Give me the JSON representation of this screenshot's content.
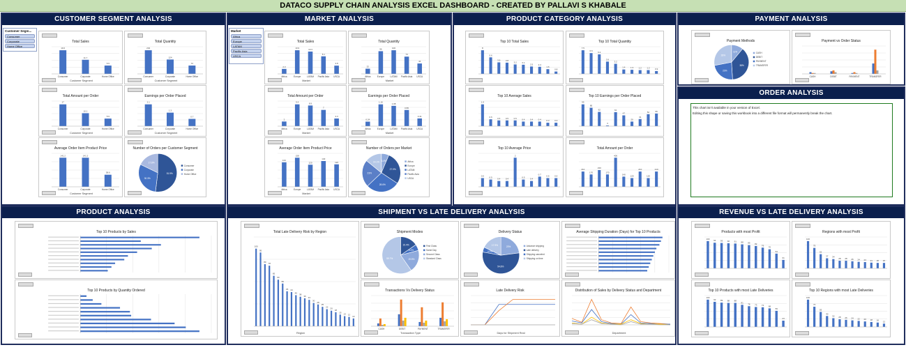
{
  "title": "DATACO SUPPLY CHAIN ANALYSIS EXCEL DASHBOARD - CREATED BY PALLAVI S KHABALE",
  "colors": {
    "bar": "#4472c4",
    "orange": "#ed7d31",
    "header": "#0b1f4d",
    "titlebar": "#c6e0b4"
  },
  "panels": {
    "customer": "CUSTOMER SEGMENT ANALYSIS",
    "market": "MARKET ANALYSIS",
    "product_category": "PRODUCT CATEGORY ANALYSIS",
    "payment": "PAYMENT ANALYSIS",
    "order": "ORDER ANALYSIS",
    "product": "PRODUCT ANALYSIS",
    "shipment": "SHIPMENT VS LATE DELIVERY ANALYSIS",
    "revenue": "REVENUE VS LATE DELIVERY ANALYSIS"
  },
  "slicers": {
    "customer": {
      "header": "Customer Segm...",
      "items": [
        "Consumer",
        "Corporate",
        "Home Office"
      ]
    },
    "market": {
      "header": "Market",
      "items": [
        "Africa",
        "Europe",
        "LATAM",
        "Pacific Asia",
        "USCA"
      ]
    }
  },
  "order_note": {
    "line1": "This chart isn't available in your version of Excel.",
    "line2": "Editing this shape or saving this workbook into a different file format will permanently break the chart."
  },
  "chart_titles": {
    "c_sales": "Total Sales",
    "c_qty": "Total Quantity",
    "c_amount": "Total Amount per Order",
    "c_earn": "Earnings per Order Placed",
    "c_avg": "Average Order Item Product Price",
    "c_pie": "Number of Orders per Customer Segment",
    "m_sales": "Total Sales",
    "m_qty": "Total Quantity",
    "m_amount": "Total Amount per Order",
    "m_earn": "Earnings per Order Placed",
    "m_avg": "Average Order Item Product Price",
    "m_pie": "Number of Orders per Market",
    "pc_sales": "Top 10 Total Sales",
    "pc_qty": "Top 10 Total Quantity",
    "pc_avgsales": "Top 10 Average Sales",
    "pc_earn": "Top 10 Earnings per Order Placed",
    "pc_avgprice": "Top 10 Average Price",
    "pc_amount": "Total Amount per Order",
    "pay_pie": "Payment Methods",
    "pay_status": "Payment vs Order Status",
    "p_sales": "Top 10 Products by Sales",
    "p_qty": "Top 10 Products by Quantity Ordered",
    "s_region": "Total Late Delivery Risk by Region",
    "s_modes": "Shipment Modes",
    "s_status": "Delivery Status",
    "s_days": "Average Shipping Duration (Days) for Top 10 Products",
    "s_trans": "Transactions Vs Delivery Status",
    "s_risk": "Late Delivery Risk",
    "s_dist": "Distribution of Sales by Delivery Status and Department",
    "r_profit": "Products with most Profit",
    "r_regprofit": "Regions with most Profit",
    "r_late": "Top 10 Products with most Late Deliveries",
    "r_reglate": "Top 10 Regions with most Late Deliveries"
  },
  "axis_labels": {
    "customer_segment": "Customer Segment",
    "market": "Market",
    "region": "Region",
    "transaction_type": "Transaction Type",
    "days": "Days for Shipment Real",
    "department": "Department"
  },
  "chart_data": [
    {
      "id": "c_sales",
      "type": "bar",
      "categories": [
        "Consumer",
        "Corporate",
        "Home Office"
      ],
      "values": [
        19.6,
        11.7,
        6.9
      ]
    },
    {
      "id": "c_qty",
      "type": "bar",
      "categories": [
        "Consumer",
        "Corporate",
        "Home Office"
      ],
      "values": [
        204,
        124,
        72
      ]
    },
    {
      "id": "c_amount",
      "type": "bar",
      "categories": [
        "Consumer",
        "Corporate",
        "Home Office"
      ],
      "values": [
        17.0,
        10.1,
        5.9
      ]
    },
    {
      "id": "c_earn",
      "type": "bar",
      "categories": [
        "Consumer",
        "Corporate",
        "Home Office"
      ],
      "values": [
        2.1,
        1.3,
        0.7
      ]
    },
    {
      "id": "c_avg",
      "type": "bar",
      "categories": [
        "Consumer",
        "Corporate",
        "Home Office"
      ],
      "values": [
        141.2,
        141.2,
        58.6
      ]
    },
    {
      "id": "c_pie",
      "type": "pie",
      "labels": [
        "Consumer",
        "Corporate",
        "Home Office"
      ],
      "values": [
        51.9,
        30.3,
        17.8
      ],
      "colors": [
        "#2f5597",
        "#4472c4",
        "#a9b9e0"
      ]
    },
    {
      "id": "m_sales",
      "type": "bar",
      "categories": [
        "Africa",
        "Europe",
        "LATAM",
        "Pacific Asia",
        "USCA"
      ],
      "values": [
        2.3,
        10.9,
        10.3,
        8.1,
        3.8
      ]
    },
    {
      "id": "m_qty",
      "type": "bar",
      "categories": [
        "Africa",
        "Europe",
        "LATAM",
        "Pacific Asia",
        "USCA"
      ],
      "values": [
        22,
        96,
        100,
        73,
        44
      ]
    },
    {
      "id": "m_amount",
      "type": "bar",
      "categories": [
        "Africa",
        "Europe",
        "LATAM",
        "Pacific Asia",
        "USCA"
      ],
      "values": [
        2.0,
        9.4,
        8.9,
        7.0,
        3.3
      ]
    },
    {
      "id": "m_earn",
      "type": "bar",
      "categories": [
        "Africa",
        "Europe",
        "LATAM",
        "Pacific Asia",
        "USCA"
      ],
      "values": [
        0.24,
        1.16,
        1.08,
        0.86,
        0.41
      ]
    },
    {
      "id": "m_avg",
      "type": "bar",
      "categories": [
        "Africa",
        "Europe",
        "LATAM",
        "Pacific Asia",
        "USCA"
      ],
      "values": [
        133,
        158,
        120,
        140,
        122
      ]
    },
    {
      "id": "m_pie",
      "type": "pie",
      "labels": [
        "Africa",
        "Europe",
        "LATAM",
        "Pacific Asia",
        "USCA"
      ],
      "values": [
        6.4,
        27.9,
        28.6,
        23.0,
        14.1
      ],
      "colors": [
        "#8faadc",
        "#2f5597",
        "#4472c4",
        "#5b7fc7",
        "#b4c7e7"
      ]
    },
    {
      "id": "pc_sales",
      "type": "bar",
      "values": [
        8.0,
        5.6,
        3.9,
        3.8,
        3.2,
        3.1,
        2.5,
        2.4,
        1.6,
        0.8
      ]
    },
    {
      "id": "pc_qty",
      "type": "bar",
      "values": [
        7.5,
        6.6,
        6.2,
        3.9,
        3.2,
        1.4,
        1.3,
        1.2,
        1.2,
        0.9
      ]
    },
    {
      "id": "pc_avgsales",
      "type": "bar",
      "values": [
        1.9,
        0.6,
        0.5,
        0.5,
        0.5,
        0.4,
        0.4,
        0.4,
        0.3,
        0.3
      ]
    },
    {
      "id": "pc_earn",
      "type": "bar",
      "values": [
        95,
        80,
        62,
        3,
        61,
        47,
        20,
        31,
        52,
        55
      ]
    },
    {
      "id": "pc_avgprice",
      "type": "bar",
      "values": [
        0.6,
        0.5,
        0.4,
        0.4,
        2.0,
        0.5,
        0.4,
        0.7,
        0.6,
        0.6
      ]
    },
    {
      "id": "pc_amount",
      "type": "bar",
      "values": [
        210,
        170,
        230,
        170,
        400,
        140,
        120,
        210,
        120,
        210
      ]
    },
    {
      "id": "pay_pie",
      "type": "pie",
      "labels": [
        "CASH",
        "DEBIT",
        "PAYMENT",
        "TRANSFER"
      ],
      "values": [
        11,
        38,
        23,
        28
      ],
      "colors": [
        "#8faadc",
        "#2f5597",
        "#4472c4",
        "#b4c7e7"
      ]
    },
    {
      "id": "pay_status",
      "type": "bar",
      "categories": [
        "CASH",
        "DEBIT",
        "PAYMENT",
        "TRANSFER"
      ],
      "series": [
        {
          "values": [
            2,
            3,
            1,
            12
          ]
        },
        {
          "values": [
            1,
            4,
            2,
            28
          ]
        },
        {
          "values": [
            1,
            2,
            1,
            4
          ]
        }
      ]
    },
    {
      "id": "p_sales",
      "type": "bar",
      "orientation": "horizontal",
      "values": [
        6.5,
        3.3,
        4.4,
        3.9,
        3.1,
        2.6,
        2.4,
        1.9,
        1.7,
        1.5
      ]
    },
    {
      "id": "p_qty",
      "type": "bar",
      "orientation": "horizontal",
      "values": [
        0.5,
        1.0,
        1.7,
        3.2,
        4.0,
        4.1,
        5.7,
        7.6,
        8.5,
        9.6
      ]
    },
    {
      "id": "s_region",
      "type": "bar",
      "values": [
        100,
        95,
        80,
        78,
        65,
        60,
        55,
        45,
        44,
        40,
        38,
        36,
        34,
        30,
        28,
        25,
        22,
        20,
        18,
        15,
        13,
        12,
        10
      ]
    },
    {
      "id": "s_modes",
      "type": "pie",
      "labels": [
        "First Class",
        "Same Day",
        "Second Class",
        "Standard Class"
      ],
      "values": [
        15.4,
        5.4,
        19.5,
        59.7
      ],
      "colors": [
        "#2f5597",
        "#4472c4",
        "#8faadc",
        "#b4c7e7"
      ]
    },
    {
      "id": "s_status",
      "type": "pie",
      "labels": [
        "Advance shipping",
        "Late delivery",
        "Shipping canceled",
        "Shipping on time"
      ],
      "values": [
        23.0,
        54.8,
        4.3,
        17.9
      ],
      "colors": [
        "#8faadc",
        "#2f5597",
        "#4472c4",
        "#b4c7e7"
      ]
    },
    {
      "id": "s_days",
      "type": "bar",
      "orientation": "horizontal",
      "values": [
        4.2,
        4.1,
        4.0,
        3.8,
        3.7,
        3.6,
        3.5,
        3.4,
        3.3,
        3.2
      ]
    },
    {
      "id": "s_trans",
      "type": "bar",
      "categories": [
        "CASH",
        "DEBIT",
        "PAYMENT",
        "TRANSFER"
      ],
      "series": [
        {
          "values": [
            4,
            17,
            6,
            12
          ]
        },
        {
          "values": [
            11,
            38,
            27,
            34
          ]
        },
        {
          "values": [
            2,
            8,
            5,
            7
          ]
        },
        {
          "values": [
            3,
            12,
            8,
            10
          ]
        }
      ]
    },
    {
      "id": "s_risk",
      "type": "line",
      "x": [
        0,
        1,
        2,
        3,
        4,
        5,
        6
      ],
      "series": [
        {
          "values": [
            0,
            0,
            20,
            20,
            20,
            20,
            20
          ],
          "color": "#4472c4"
        },
        {
          "values": [
            0,
            0,
            14,
            25,
            25,
            25,
            25
          ],
          "color": "#ed7d31"
        },
        {
          "values": [
            0,
            0,
            0,
            0,
            0,
            0,
            0
          ],
          "color": "#a5a5a5"
        }
      ]
    },
    {
      "id": "s_dist",
      "type": "line",
      "series": [
        {
          "values": [
            10,
            4,
            40,
            8,
            3,
            2,
            28,
            5,
            3,
            2,
            1
          ],
          "color": "#ed7d31"
        },
        {
          "values": [
            6,
            3,
            24,
            5,
            2,
            1,
            16,
            3,
            2,
            1,
            1
          ],
          "color": "#4472c4"
        },
        {
          "values": [
            3,
            1,
            12,
            3,
            1,
            1,
            8,
            2,
            1,
            1,
            0
          ],
          "color": "#ffc000"
        },
        {
          "values": [
            2,
            1,
            8,
            2,
            1,
            0,
            5,
            1,
            1,
            0,
            0
          ],
          "color": "#a5a5a5"
        }
      ]
    },
    {
      "id": "r_profit",
      "type": "bar",
      "values": [
        100,
        94,
        93,
        92,
        91,
        88,
        85,
        82,
        76,
        70,
        54,
        31
      ]
    },
    {
      "id": "r_regprofit",
      "type": "bar",
      "values": [
        100,
        75,
        52,
        37,
        34,
        28,
        28,
        26,
        24,
        23,
        21,
        20,
        20
      ]
    },
    {
      "id": "r_late",
      "type": "bar",
      "values": [
        100,
        92,
        89,
        88,
        88,
        81,
        76,
        73,
        72,
        68,
        59,
        23
      ]
    },
    {
      "id": "r_reglate",
      "type": "bar",
      "values": [
        100,
        74,
        55,
        40,
        32,
        28,
        26,
        24,
        22,
        20,
        18,
        16,
        12
      ]
    }
  ]
}
